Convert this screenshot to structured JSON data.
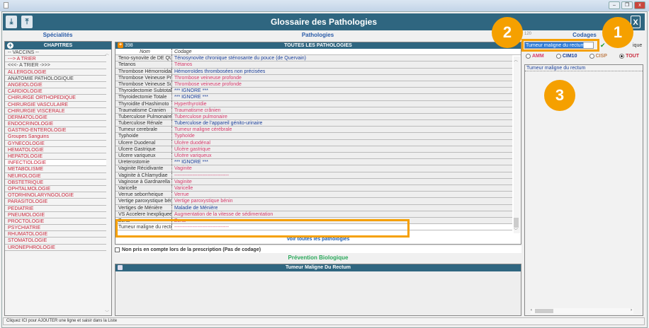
{
  "window": {
    "title": "Glossaire des Pathologies",
    "close_icon": "close-icon",
    "toolbar_icons": [
      "save-down-icon",
      "save-up-icon"
    ]
  },
  "left": {
    "section_title": "Spécialités",
    "list_header": "CHAPITRES",
    "items": [
      {
        "label": "-- VACCINS --",
        "color": "grey"
      },
      {
        "label": "---> A TRIER",
        "color": "red"
      },
      {
        "label": "<<<- A TRIER ->>>",
        "color": "grey"
      },
      {
        "label": "ALLERGOLOGIE",
        "color": "red"
      },
      {
        "label": "ANATOMIE PATHOLOGIQUE",
        "color": "grey"
      },
      {
        "label": "ANGEIOLOGIE",
        "color": "red"
      },
      {
        "label": "CARDIOLOGIE",
        "color": "red"
      },
      {
        "label": "CHIRURGE ORTHOPEDIQUE",
        "color": "red"
      },
      {
        "label": "CHIRURGIE VASCULAIRE",
        "color": "red"
      },
      {
        "label": "CHIRURGIE VISCERALE",
        "color": "red"
      },
      {
        "label": "DERMATOLOGIE",
        "color": "red"
      },
      {
        "label": "ENDOCRINOLOGIE",
        "color": "red"
      },
      {
        "label": "GASTRO-ENTEROLOGIE",
        "color": "red"
      },
      {
        "label": "Groupes Sanguins",
        "color": "red"
      },
      {
        "label": "GYNECOLOGIE",
        "color": "red"
      },
      {
        "label": "HEMATOLOGIE",
        "color": "red"
      },
      {
        "label": "HEPATOLOGIE",
        "color": "red"
      },
      {
        "label": "INFECTIOLOGIE",
        "color": "red"
      },
      {
        "label": "METABOLISME",
        "color": "red"
      },
      {
        "label": "NEUROLOGIE",
        "color": "red"
      },
      {
        "label": "OBSTETRIQUE",
        "color": "red"
      },
      {
        "label": "OPHTALMOLOGIE",
        "color": "red"
      },
      {
        "label": "OTORHINOLARYNGOLOGIE",
        "color": "red"
      },
      {
        "label": "PARASITOLOGIE",
        "color": "red"
      },
      {
        "label": "PEDIATRIE",
        "color": "red"
      },
      {
        "label": "PNEUMOLOGIE",
        "color": "red"
      },
      {
        "label": "PROCTOLOGIE",
        "color": "red"
      },
      {
        "label": "PSYCHIATRIE",
        "color": "red"
      },
      {
        "label": "RHUMATOLOGIE",
        "color": "red"
      },
      {
        "label": "STOMATOLOGIE",
        "color": "red"
      },
      {
        "label": "URONEPHROLOGIE",
        "color": "red"
      }
    ]
  },
  "middle": {
    "section_title": "Pathologies",
    "count": "398",
    "list_header": "TOUTES LES PATHOLOGIES",
    "col_nom": "Nom",
    "col_codage": "Codage",
    "rows": [
      {
        "nom": "Teno-synovite de DE QUERVAIN",
        "codage": "Ténosynovite chronique sténosante du pouce (de Quervain)",
        "color": "blue"
      },
      {
        "nom": "Tetanos",
        "codage": "Tétanos",
        "color": "pink"
      },
      {
        "nom": "Thrombose Hémorroidaire",
        "codage": "Hémorroïdes thrombosées non précisées",
        "color": "blue"
      },
      {
        "nom": "Thrombose Veineuse Profonde",
        "codage": "Thrombose veineuse profonde",
        "color": "pink"
      },
      {
        "nom": "Thrombose Veineuse Superficielle",
        "codage": "Thrombose veineuse profonde",
        "color": "pink"
      },
      {
        "nom": "Thyroidectomie Subtotale",
        "codage": "*** IGNORE ***",
        "color": "blue"
      },
      {
        "nom": "Thyroidectomie Totale",
        "codage": "*** IGNORE ***",
        "color": "blue"
      },
      {
        "nom": "Thyroidite d'Hashimoto",
        "codage": "Hyperthyroïdie",
        "color": "pink"
      },
      {
        "nom": "Traumatisme Cranien",
        "codage": "Traumatisme crânien",
        "color": "pink"
      },
      {
        "nom": "Tuberculose Pulmonaire",
        "codage": "Tuberculose pulmonaire",
        "color": "pink"
      },
      {
        "nom": "Tuberculose Rénale",
        "codage": "Tuberculose de l'appareil génito-urinaire",
        "color": "blue"
      },
      {
        "nom": "Tumeur cerebrale",
        "codage": "Tumeur maligne cérébrale",
        "color": "pink"
      },
      {
        "nom": "Typhoide",
        "codage": "Typhoïde",
        "color": "pink"
      },
      {
        "nom": "Ulcere Duodenal",
        "codage": "Ulcère duodénal",
        "color": "pink"
      },
      {
        "nom": "Ulcere Gastrique",
        "codage": "Ulcère gastrique",
        "color": "pink"
      },
      {
        "nom": "Ulcere variqueux",
        "codage": "Ulcère variqueux",
        "color": "pink"
      },
      {
        "nom": "Ureterostomie",
        "codage": "*** IGNORE ***",
        "color": "blue"
      },
      {
        "nom": "Vaginite Récidivante",
        "codage": "Vaginite",
        "color": "pink"
      },
      {
        "nom": "Vaginite à Chlamydiae",
        "codage": "---------------------------------",
        "color": "pink"
      },
      {
        "nom": "Vaginose à Gardnarella",
        "codage": "Vaginite",
        "color": "pink"
      },
      {
        "nom": "Varicelle",
        "codage": "Varicelle",
        "color": "pink"
      },
      {
        "nom": "Verrue seborrheique",
        "codage": "Verrue",
        "color": "pink"
      },
      {
        "nom": "Vertige paroxystique bénin",
        "codage": "Vertige paroxystique bénin",
        "color": "pink"
      },
      {
        "nom": "Vertiges de Ménière",
        "codage": "Maladie de Ménière",
        "color": "blue"
      },
      {
        "nom": "VS Accelere Inexpliquee",
        "codage": "Augmentation de la vitesse de sédimentation",
        "color": "pink"
      },
      {
        "nom": "Zona",
        "codage": "Zona",
        "color": "pink"
      },
      {
        "nom": "Tumeur maligne du rectum",
        "codage": "---------------------------------",
        "color": "pink"
      }
    ],
    "see_all_link": "Voir toutes les pathologies",
    "checkbox_label": "Non pris en compte lors de la prescription (Pas de codage)",
    "prevention_title": "Prévention Biologique",
    "prevention_header": "Tumeur Maligne Du Rectum"
  },
  "right": {
    "count": "120",
    "section_title": "Codages",
    "search_value": "Tumeur maligne du rectum",
    "partial_label": "ique",
    "radios": [
      {
        "label": "AMM",
        "checked": false,
        "color": "#d63a6a"
      },
      {
        "label": "CIM10",
        "checked": false,
        "color": "#1a3f9a"
      },
      {
        "label": "CISP",
        "checked": false,
        "color": "#c08050"
      },
      {
        "label": "TOUT",
        "checked": true,
        "color": "#c8283c"
      }
    ],
    "result": "Tumeur maligne du rectum"
  },
  "annotations": [
    "1",
    "2",
    "3"
  ],
  "status_bar": "Cliquez ICI pour AJOUTER une ligne et saisir dans la Liste"
}
